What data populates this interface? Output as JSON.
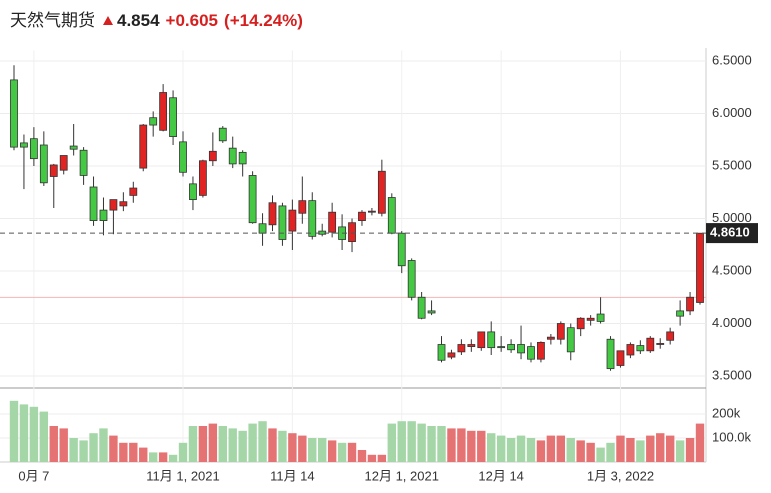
{
  "header": {
    "name": "天然气期货",
    "price": "4.854",
    "change": "+0.605",
    "change_percent": "(+14.24%)"
  },
  "chart_data": {
    "type": "candlestick",
    "categories": [
      null,
      null,
      "0月 7",
      null,
      null,
      null,
      null,
      null,
      null,
      null,
      null,
      null,
      null,
      null,
      null,
      null,
      null,
      "11月 1, 2021",
      null,
      null,
      null,
      null,
      null,
      null,
      null,
      null,
      null,
      null,
      "11月 14",
      null,
      null,
      null,
      null,
      null,
      null,
      null,
      null,
      null,
      null,
      "12月 1, 2021",
      null,
      null,
      null,
      null,
      null,
      null,
      null,
      null,
      null,
      "12月 14",
      null,
      null,
      null,
      null,
      null,
      null,
      null,
      null,
      null,
      null,
      null,
      "1月 3, 2022",
      null,
      null,
      null,
      null,
      null,
      null,
      null,
      null
    ],
    "open": [
      6.32,
      5.72,
      5.76,
      5.7,
      5.4,
      5.46,
      5.69,
      5.65,
      5.3,
      5.08,
      5.08,
      5.12,
      5.22,
      5.48,
      5.96,
      5.84,
      6.15,
      5.73,
      5.33,
      5.22,
      5.55,
      5.86,
      5.67,
      5.63,
      5.41,
      4.95,
      4.94,
      5.12,
      4.88,
      5.05,
      5.17,
      4.88,
      4.87,
      4.92,
      4.78,
      4.98,
      5.06,
      5.05,
      5.2,
      4.86,
      4.6,
      4.25,
      4.12,
      3.8,
      3.68,
      3.73,
      3.78,
      3.77,
      3.92,
      3.78,
      3.8,
      3.8,
      3.78,
      3.66,
      3.85,
      3.85,
      3.96,
      3.95,
      4.03,
      4.09,
      3.85,
      3.6,
      3.7,
      3.79,
      3.74,
      3.8,
      3.84,
      4.12,
      4.12,
      4.2
    ],
    "high": [
      6.46,
      5.8,
      5.87,
      5.83,
      5.52,
      5.6,
      5.9,
      5.68,
      5.4,
      5.2,
      5.18,
      5.25,
      5.35,
      5.9,
      6.02,
      6.28,
      6.22,
      5.83,
      5.4,
      5.56,
      5.82,
      5.88,
      5.78,
      5.65,
      5.45,
      5.05,
      5.22,
      5.15,
      5.18,
      5.4,
      5.25,
      4.95,
      5.15,
      5.04,
      5.0,
      5.08,
      5.1,
      5.56,
      5.24,
      4.88,
      4.62,
      4.3,
      4.22,
      3.88,
      3.75,
      3.85,
      3.85,
      3.92,
      4.02,
      3.88,
      3.85,
      3.98,
      3.82,
      3.83,
      3.9,
      4.02,
      4.0,
      4.06,
      4.08,
      4.25,
      3.88,
      3.74,
      3.82,
      3.84,
      3.88,
      3.86,
      3.96,
      4.22,
      4.3,
      4.86
    ],
    "low": [
      5.65,
      5.28,
      5.5,
      5.31,
      5.1,
      5.42,
      5.6,
      5.32,
      4.93,
      4.84,
      4.85,
      5.07,
      5.15,
      5.45,
      5.78,
      5.83,
      5.7,
      5.4,
      5.08,
      5.2,
      5.5,
      5.72,
      5.48,
      5.4,
      4.95,
      4.74,
      4.88,
      4.74,
      4.7,
      4.95,
      4.8,
      4.83,
      4.82,
      4.7,
      4.68,
      4.93,
      5.03,
      5.02,
      4.85,
      4.48,
      4.22,
      4.04,
      4.08,
      3.63,
      3.66,
      3.7,
      3.73,
      3.74,
      3.7,
      3.73,
      3.72,
      3.66,
      3.63,
      3.63,
      3.8,
      3.8,
      3.65,
      3.88,
      3.98,
      4.0,
      3.55,
      3.58,
      3.67,
      3.71,
      3.72,
      3.76,
      3.8,
      3.98,
      4.08,
      4.18
    ],
    "close": [
      5.68,
      5.68,
      5.57,
      5.34,
      5.51,
      5.6,
      5.66,
      5.41,
      4.98,
      4.98,
      5.18,
      5.16,
      5.29,
      5.89,
      5.89,
      6.2,
      5.78,
      5.44,
      5.18,
      5.55,
      5.64,
      5.74,
      5.52,
      5.52,
      4.96,
      4.86,
      5.15,
      4.8,
      5.08,
      5.17,
      4.83,
      4.85,
      5.06,
      4.8,
      4.96,
      5.06,
      5.07,
      5.45,
      4.86,
      4.55,
      4.25,
      4.05,
      4.1,
      3.65,
      3.72,
      3.8,
      3.8,
      3.92,
      3.77,
      3.77,
      3.75,
      3.72,
      3.66,
      3.82,
      3.87,
      4.0,
      3.73,
      4.05,
      4.05,
      4.02,
      3.57,
      3.74,
      3.8,
      3.74,
      3.86,
      3.81,
      3.92,
      4.07,
      4.25,
      4.86
    ],
    "up_color": "#e02424",
    "down_color": "#45c945",
    "ylim": [
      3.4,
      6.6
    ],
    "yticks": [
      {
        "value": 3.5,
        "label": "3.5000"
      },
      {
        "value": 4,
        "label": "4.0000"
      },
      {
        "value": 4.5,
        "label": "4.5000"
      },
      {
        "value": 5,
        "label": "5.0000"
      },
      {
        "value": 5.5,
        "label": "5.5000"
      },
      {
        "value": 6,
        "label": "6.0000"
      },
      {
        "value": 6.5,
        "label": "6.5000"
      }
    ],
    "last_price": {
      "value": 4.861,
      "label": "4.8610"
    },
    "prev_close": 4.249,
    "grid": true,
    "volume": {
      "values": [
        255000,
        240000,
        230000,
        210000,
        150000,
        140000,
        100000,
        90000,
        120000,
        140000,
        110000,
        80000,
        80000,
        60000,
        40000,
        40000,
        30000,
        80000,
        150000,
        150000,
        160000,
        150000,
        140000,
        130000,
        160000,
        170000,
        140000,
        130000,
        120000,
        110000,
        100000,
        100000,
        90000,
        80000,
        80000,
        50000,
        30000,
        30000,
        160000,
        170000,
        170000,
        160000,
        150000,
        150000,
        140000,
        140000,
        130000,
        130000,
        120000,
        110000,
        100000,
        110000,
        100000,
        90000,
        110000,
        110000,
        100000,
        90000,
        80000,
        60000,
        80000,
        110000,
        100000,
        90000,
        110000,
        120000,
        110000,
        90000,
        100000,
        160000
      ],
      "up_color": "#e57373",
      "down_color": "#a5d6a7",
      "ylim": [
        0,
        300000
      ],
      "yticks": [
        {
          "value": 100000,
          "label": "100.0k"
        },
        {
          "value": 200000,
          "label": "200k"
        }
      ]
    }
  }
}
